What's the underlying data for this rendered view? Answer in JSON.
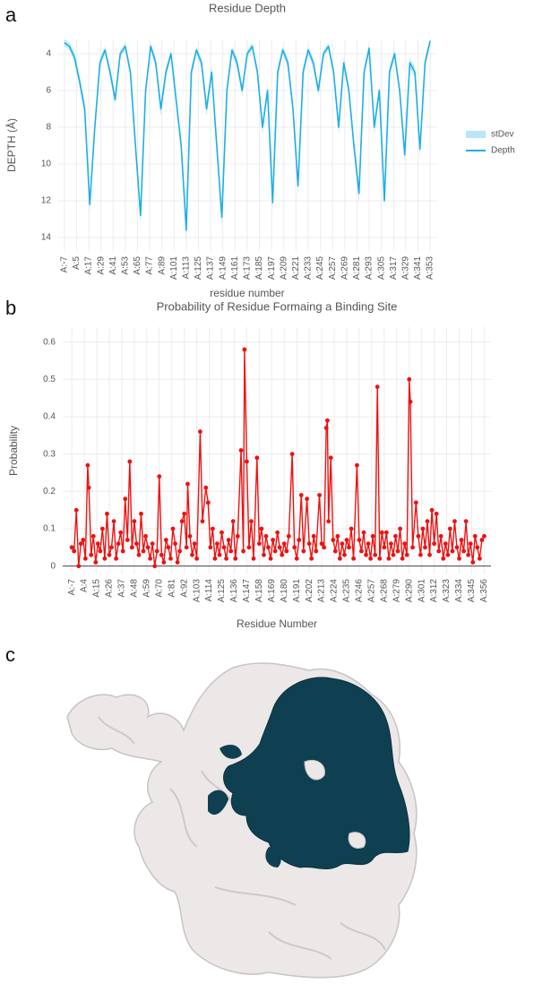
{
  "panels": [
    "a",
    "b",
    "c"
  ],
  "chart_data": [
    {
      "type": "line",
      "title": "Residue Depth",
      "xlabel": "residue number",
      "ylabel": "DEPTH (Å)",
      "x": [
        -7,
        -2,
        3,
        8,
        13,
        18,
        23,
        28,
        33,
        38,
        43,
        48,
        53,
        58,
        63,
        68,
        73,
        78,
        83,
        88,
        93,
        98,
        103,
        108,
        113,
        118,
        123,
        128,
        133,
        138,
        143,
        148,
        153,
        158,
        163,
        168,
        173,
        178,
        183,
        188,
        193,
        198,
        203,
        208,
        213,
        218,
        223,
        228,
        233,
        238,
        243,
        248,
        253,
        258,
        263,
        268,
        273,
        278,
        283,
        288,
        293,
        298,
        303,
        308,
        313,
        318,
        323,
        328,
        333,
        338,
        343,
        348,
        353
      ],
      "series": [
        {
          "name": "stDev",
          "type": "band",
          "color": "#b7e6f8",
          "values": [
            0.2,
            0.2,
            0.3,
            0.3,
            0.4,
            0.5,
            0.4,
            0.3,
            0.2,
            0.3,
            0.3,
            0.2,
            0.2,
            0.3,
            0.4,
            0.5,
            0.3,
            0.2,
            0.3,
            0.4,
            0.3,
            0.2,
            0.3,
            0.4,
            0.6,
            0.3,
            0.2,
            0.3,
            0.4,
            0.3,
            0.4,
            0.5,
            0.3,
            0.2,
            0.3,
            0.3,
            0.2,
            0.2,
            0.3,
            0.4,
            0.3,
            0.5,
            0.3,
            0.2,
            0.3,
            0.4,
            0.5,
            0.3,
            0.2,
            0.3,
            0.3,
            0.2,
            0.2,
            0.3,
            0.4,
            0.3,
            0.3,
            0.4,
            0.5,
            0.3,
            0.2,
            0.4,
            0.3,
            0.5,
            0.3,
            0.2,
            0.3,
            0.4,
            0.3,
            0.3,
            0.4,
            0.3,
            0.2
          ]
        },
        {
          "name": "Depth",
          "type": "line",
          "color": "#1eaee8",
          "values": [
            3.4,
            3.6,
            4.2,
            5.5,
            7,
            12.2,
            8,
            4.5,
            3.8,
            5,
            6.5,
            4,
            3.6,
            5,
            9,
            12.8,
            6,
            3.6,
            4.5,
            7,
            5,
            4,
            6.5,
            9,
            13.6,
            5,
            3.8,
            4.5,
            7,
            5,
            9,
            12.9,
            6,
            3.8,
            4.5,
            6,
            4,
            3.6,
            5,
            8,
            6,
            12.1,
            5,
            3.8,
            4.5,
            7,
            11.2,
            5,
            3.8,
            4.5,
            6,
            4,
            3.6,
            5,
            8,
            4.5,
            6,
            9,
            11.6,
            5,
            3.7,
            8,
            6,
            12,
            5,
            4,
            6,
            9.5,
            4.5,
            5,
            9.2,
            4.5,
            3.3
          ]
        }
      ],
      "xlim": [
        -13,
        360
      ],
      "xticks": [
        {
          "value": -7,
          "label": "A:-7"
        },
        {
          "value": 5,
          "label": "A:5"
        },
        {
          "value": 17,
          "label": "A:17"
        },
        {
          "value": 29,
          "label": "A:29"
        },
        {
          "value": 41,
          "label": "A:41"
        },
        {
          "value": 53,
          "label": "A:53"
        },
        {
          "value": 65,
          "label": "A:65"
        },
        {
          "value": 77,
          "label": "A:77"
        },
        {
          "value": 89,
          "label": "A:89"
        },
        {
          "value": 101,
          "label": "A:101"
        },
        {
          "value": 113,
          "label": "A:113"
        },
        {
          "value": 125,
          "label": "A:125"
        },
        {
          "value": 137,
          "label": "A:137"
        },
        {
          "value": 149,
          "label": "A:149"
        },
        {
          "value": 161,
          "label": "A:161"
        },
        {
          "value": 173,
          "label": "A:173"
        },
        {
          "value": 185,
          "label": "A:185"
        },
        {
          "value": 197,
          "label": "A:197"
        },
        {
          "value": 209,
          "label": "A:209"
        },
        {
          "value": 221,
          "label": "A:221"
        },
        {
          "value": 233,
          "label": "A:233"
        },
        {
          "value": 245,
          "label": "A:245"
        },
        {
          "value": 257,
          "label": "A:257"
        },
        {
          "value": 269,
          "label": "A:269"
        },
        {
          "value": 281,
          "label": "A:281"
        },
        {
          "value": 293,
          "label": "A:293"
        },
        {
          "value": 305,
          "label": "A:305"
        },
        {
          "value": 317,
          "label": "A:317"
        },
        {
          "value": 329,
          "label": "A:329"
        },
        {
          "value": 341,
          "label": "A:341"
        },
        {
          "value": 353,
          "label": "A:353"
        }
      ],
      "ylim": [
        3.27,
        14.73
      ],
      "yreversed": true,
      "yticks": [
        4,
        6,
        8,
        10,
        12,
        14
      ],
      "grid": true,
      "legend": "right"
    },
    {
      "type": "line",
      "title": "Probability of Residue Formaing a Binding Site",
      "xlabel": "Residue Number",
      "ylabel": "Probability",
      "color": "#ee1111",
      "markers": true,
      "x": [
        -7,
        -5,
        -3,
        -1,
        1,
        3,
        5,
        7,
        8,
        10,
        12,
        14,
        16,
        18,
        20,
        22,
        24,
        26,
        28,
        30,
        32,
        34,
        36,
        38,
        40,
        42,
        44,
        46,
        48,
        50,
        52,
        54,
        56,
        58,
        60,
        62,
        64,
        66,
        68,
        70,
        72,
        74,
        76,
        78,
        80,
        82,
        84,
        86,
        88,
        90,
        92,
        94,
        95,
        97,
        99,
        101,
        103,
        106,
        108,
        111,
        113,
        115,
        117,
        119,
        121,
        123,
        125,
        127,
        129,
        131,
        133,
        135,
        137,
        139,
        142,
        144,
        145,
        147,
        149,
        151,
        153,
        156,
        158,
        160,
        162,
        164,
        166,
        168,
        170,
        172,
        174,
        176,
        178,
        180,
        182,
        184,
        187,
        189,
        191,
        193,
        195,
        197,
        200,
        202,
        204,
        206,
        208,
        211,
        213,
        215,
        217,
        218,
        219,
        221,
        223,
        225,
        227,
        229,
        231,
        233,
        235,
        237,
        239,
        241,
        244,
        246,
        248,
        250,
        252,
        254,
        256,
        258,
        260,
        262,
        264,
        266,
        268,
        270,
        272,
        274,
        276,
        278,
        280,
        282,
        284,
        286,
        288,
        290,
        291,
        293,
        296,
        298,
        300,
        302,
        304,
        306,
        308,
        310,
        312,
        314,
        316,
        318,
        320,
        322,
        324,
        326,
        328,
        330,
        332,
        334,
        336,
        338,
        340,
        342,
        344,
        346,
        348,
        350,
        352,
        354,
        356
      ],
      "values": [
        0.05,
        0.04,
        0.15,
        0,
        0.06,
        0.07,
        0.02,
        0.27,
        0.21,
        0.03,
        0.08,
        0.01,
        0.06,
        0.04,
        0.1,
        0.02,
        0.14,
        0.03,
        0.05,
        0.12,
        0.02,
        0.06,
        0.09,
        0.04,
        0.18,
        0.07,
        0.28,
        0.05,
        0.12,
        0.06,
        0.03,
        0.14,
        0.04,
        0.08,
        0.05,
        0.02,
        0.06,
        0,
        0.04,
        0.24,
        0.03,
        0.01,
        0.07,
        0.05,
        0.02,
        0.1,
        0.06,
        0.01,
        0.04,
        0.12,
        0.14,
        0.05,
        0.22,
        0.08,
        0.03,
        0.06,
        0.02,
        0.36,
        0.12,
        0.21,
        0.17,
        0.05,
        0.1,
        0.02,
        0.06,
        0.03,
        0.09,
        0.05,
        0.02,
        0.07,
        0.04,
        0.12,
        0.02,
        0.08,
        0.31,
        0.04,
        0.58,
        0.28,
        0.05,
        0.12,
        0.02,
        0.29,
        0.06,
        0.1,
        0.03,
        0.08,
        0.05,
        0.02,
        0.07,
        0.04,
        0.09,
        0.05,
        0.03,
        0.06,
        0.04,
        0.08,
        0.3,
        0.05,
        0.02,
        0.07,
        0.19,
        0.04,
        0.18,
        0.06,
        0.02,
        0.08,
        0.04,
        0.19,
        0.06,
        0.05,
        0.37,
        0.39,
        0.12,
        0.29,
        0.07,
        0.04,
        0.08,
        0.02,
        0.06,
        0.03,
        0.07,
        0.05,
        0.1,
        0.02,
        0.27,
        0.07,
        0.04,
        0.09,
        0.03,
        0.06,
        0.02,
        0.08,
        0.03,
        0.48,
        0.02,
        0.09,
        0.05,
        0.09,
        0.02,
        0.06,
        0.03,
        0.08,
        0.04,
        0.1,
        0.02,
        0.06,
        0.03,
        0.5,
        0.44,
        0.05,
        0.17,
        0.08,
        0.03,
        0.1,
        0.05,
        0.12,
        0.03,
        0.15,
        0.06,
        0.14,
        0.04,
        0.08,
        0.02,
        0.06,
        0.03,
        0.1,
        0.04,
        0.12,
        0.05,
        0.02,
        0.07,
        0.04,
        0.12,
        0.03,
        0.06,
        0.01,
        0.08,
        0.05,
        0.02,
        0.07,
        0.08
      ],
      "xlim": [
        -15,
        362
      ],
      "xticks": [
        {
          "value": -7,
          "label": "A:-7"
        },
        {
          "value": 4,
          "label": "A:4"
        },
        {
          "value": 15,
          "label": "A:15"
        },
        {
          "value": 26,
          "label": "A:26"
        },
        {
          "value": 37,
          "label": "A:37"
        },
        {
          "value": 48,
          "label": "A:48"
        },
        {
          "value": 59,
          "label": "A:59"
        },
        {
          "value": 70,
          "label": "A:70"
        },
        {
          "value": 81,
          "label": "A:81"
        },
        {
          "value": 92,
          "label": "A:92"
        },
        {
          "value": 103,
          "label": "A:103"
        },
        {
          "value": 114,
          "label": "A:114"
        },
        {
          "value": 125,
          "label": "A:125"
        },
        {
          "value": 136,
          "label": "A:136"
        },
        {
          "value": 147,
          "label": "A:147"
        },
        {
          "value": 158,
          "label": "A:158"
        },
        {
          "value": 169,
          "label": "A:169"
        },
        {
          "value": 180,
          "label": "A:180"
        },
        {
          "value": 191,
          "label": "A:191"
        },
        {
          "value": 202,
          "label": "A:202"
        },
        {
          "value": 213,
          "label": "A:213"
        },
        {
          "value": 224,
          "label": "A:224"
        },
        {
          "value": 235,
          "label": "A:235"
        },
        {
          "value": 246,
          "label": "A:246"
        },
        {
          "value": 257,
          "label": "A:257"
        },
        {
          "value": 268,
          "label": "A:268"
        },
        {
          "value": 279,
          "label": "A:279"
        },
        {
          "value": 290,
          "label": "A:290"
        },
        {
          "value": 301,
          "label": "A:301"
        },
        {
          "value": 312,
          "label": "A:312"
        },
        {
          "value": 323,
          "label": "A:323"
        },
        {
          "value": 334,
          "label": "A:334"
        },
        {
          "value": 345,
          "label": "A:345"
        },
        {
          "value": 356,
          "label": "A:356"
        }
      ],
      "ylim": [
        -0.02,
        0.64
      ],
      "yticks": [
        0,
        0.1,
        0.2,
        0.3,
        0.4,
        0.5,
        0.6
      ],
      "grid": true
    }
  ]
}
